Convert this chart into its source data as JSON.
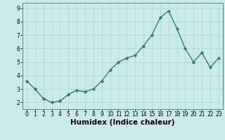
{
  "xlabel": "Humidex (Indice chaleur)",
  "x_values": [
    0,
    1,
    2,
    3,
    4,
    5,
    6,
    7,
    8,
    9,
    10,
    11,
    12,
    13,
    14,
    15,
    16,
    17,
    18,
    19,
    20,
    21,
    22,
    23
  ],
  "y_values": [
    3.6,
    3.0,
    2.3,
    2.0,
    2.1,
    2.6,
    2.9,
    2.8,
    3.0,
    3.6,
    4.4,
    5.0,
    5.3,
    5.5,
    6.2,
    7.0,
    8.3,
    8.8,
    7.5,
    6.0,
    5.0,
    5.7,
    4.6,
    5.3
  ],
  "line_color": "#2e7d6e",
  "marker": "D",
  "marker_size": 2.2,
  "bg_color": "#cceaea",
  "grid_color": "#b0d8d8",
  "ylim": [
    1.5,
    9.4
  ],
  "xlim": [
    -0.5,
    23.5
  ],
  "yticks": [
    2,
    3,
    4,
    5,
    6,
    7,
    8,
    9
  ],
  "xticks": [
    0,
    1,
    2,
    3,
    4,
    5,
    6,
    7,
    8,
    9,
    10,
    11,
    12,
    13,
    14,
    15,
    16,
    17,
    18,
    19,
    20,
    21,
    22,
    23
  ],
  "tick_fontsize": 5.5,
  "xlabel_fontsize": 7.5,
  "linewidth": 1.0
}
